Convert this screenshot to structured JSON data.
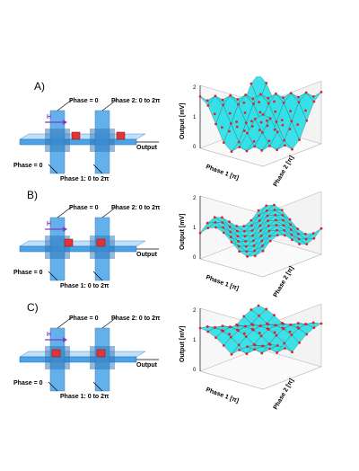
{
  "panels": [
    {
      "id": "A",
      "panel_label": "A)",
      "left_labels": {
        "phase_top_left": "Phase = 0",
        "phase_top_right": "Phase 2: 0 to 2π",
        "field": "H",
        "output": "Output",
        "phase_bottom_left": "Phase = 0",
        "phase_bottom_right": "Phase 1: 0 to 2π"
      },
      "plot": {
        "z_axis_label": "Output [mV]",
        "z_ticks": [
          "0",
          "1",
          "2"
        ],
        "x_axis_label": "Phase 1 [π]",
        "y_axis_label": "Phase 2 [π]"
      }
    },
    {
      "id": "B",
      "panel_label": "B)",
      "left_labels": {
        "phase_top_left": "Phase = 0",
        "phase_top_right": "Phase 2: 0 to 2π",
        "field": "H",
        "output": "Output",
        "phase_bottom_left": "Phase = 0",
        "phase_bottom_right": "Phase 1: 0 to 2π"
      },
      "plot": {
        "z_axis_label": "Output [mV]",
        "z_ticks": [
          "0",
          "1",
          "2"
        ],
        "x_axis_label": "Phase 1 [π]",
        "y_axis_label": "Phase 2 [π]"
      }
    },
    {
      "id": "C",
      "panel_label": "C)",
      "left_labels": {
        "phase_top_left": "Phase = 0",
        "phase_top_right": "Phase 2: 0 to 2π",
        "field": "H",
        "output": "Output",
        "phase_bottom_left": "Phase = 0",
        "phase_bottom_right": "Phase 1: 0 to 2π"
      },
      "plot": {
        "z_axis_label": "Output [mV]",
        "z_ticks": [
          "0",
          "1",
          "2"
        ],
        "x_axis_label": "Phase 1 [π]",
        "y_axis_label": "Phase 2 [π]"
      }
    }
  ],
  "colors": {
    "waveguide": "#4aa3e8",
    "waveguide_dark": "#2b74b8",
    "waveguide_light": "#bfe0fb",
    "magnet": "#e23434",
    "surface": "#35e0e8",
    "mesh_points": "#e0202a",
    "arrow": "#7a3fc0"
  }
}
